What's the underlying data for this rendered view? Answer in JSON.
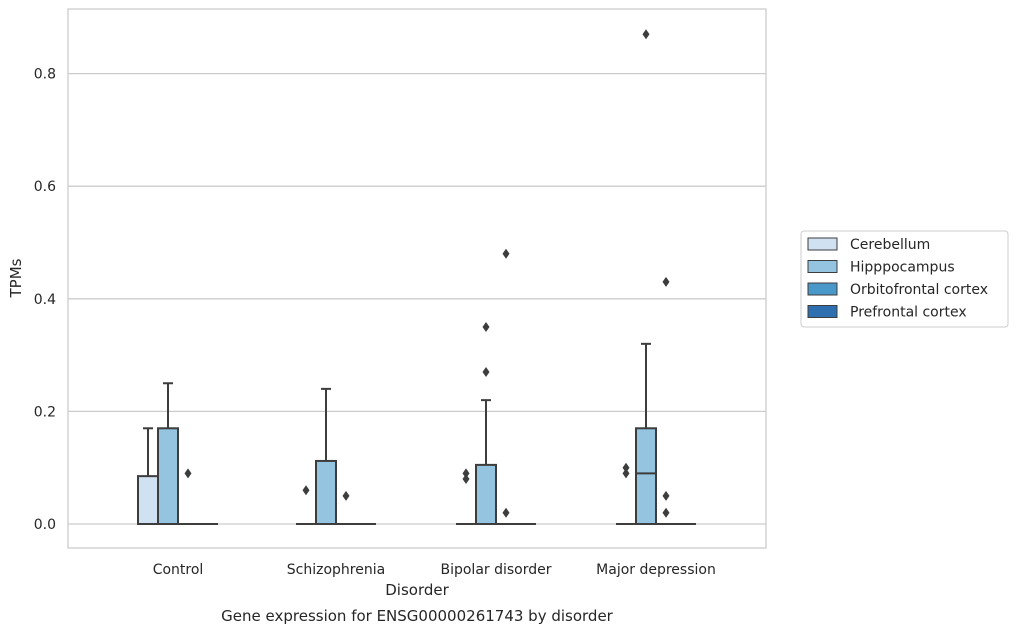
{
  "chart_data": {
    "type": "box",
    "title": "",
    "caption": "Gene expression for ENSG00000261743 by disorder",
    "xlabel": "Disorder",
    "ylabel": "TPMs",
    "ylim": [
      -0.043,
      0.915
    ],
    "yticks": [
      0.0,
      0.2,
      0.4,
      0.6,
      0.8
    ],
    "ytick_labels": [
      "0.0",
      "0.2",
      "0.4",
      "0.6",
      "0.8"
    ],
    "grid": "horizontal",
    "legend_position": "center-right",
    "categories": [
      "Control",
      "Schizophrenia",
      "Bipolar disorder",
      "Major depression"
    ],
    "series": [
      {
        "name": "Cerebellum",
        "color": "#d0e1f2",
        "boxes": [
          {
            "q1": 0.0,
            "median": 0.0,
            "q3": 0.085,
            "whisker_low": 0.0,
            "whisker_high": 0.17,
            "outliers": []
          },
          {
            "q1": 0.0,
            "median": 0.0,
            "q3": 0.0,
            "whisker_low": 0.0,
            "whisker_high": 0.0,
            "outliers": [
              0.06
            ]
          },
          {
            "q1": 0.0,
            "median": 0.0,
            "q3": 0.0,
            "whisker_low": 0.0,
            "whisker_high": 0.0,
            "outliers": [
              0.08,
              0.09
            ]
          },
          {
            "q1": 0.0,
            "median": 0.0,
            "q3": 0.0,
            "whisker_low": 0.0,
            "whisker_high": 0.0,
            "outliers": [
              0.09,
              0.1
            ]
          }
        ]
      },
      {
        "name": "Hipppocampus",
        "color": "#94c4df",
        "boxes": [
          {
            "q1": 0.0,
            "median": 0.0,
            "q3": 0.17,
            "whisker_low": 0.0,
            "whisker_high": 0.25,
            "outliers": []
          },
          {
            "q1": 0.0,
            "median": 0.0,
            "q3": 0.112,
            "whisker_low": 0.0,
            "whisker_high": 0.24,
            "outliers": []
          },
          {
            "q1": 0.0,
            "median": 0.0,
            "q3": 0.105,
            "whisker_low": 0.0,
            "whisker_high": 0.22,
            "outliers": [
              0.27,
              0.35
            ]
          },
          {
            "q1": 0.0,
            "median": 0.09,
            "q3": 0.17,
            "whisker_low": 0.0,
            "whisker_high": 0.32,
            "outliers": [
              0.87
            ]
          }
        ]
      },
      {
        "name": "Orbitofrontal cortex",
        "color": "#4a98c9",
        "boxes": [
          {
            "q1": 0.0,
            "median": 0.0,
            "q3": 0.0,
            "whisker_low": 0.0,
            "whisker_high": 0.0,
            "outliers": [
              0.09
            ]
          },
          {
            "q1": 0.0,
            "median": 0.0,
            "q3": 0.0,
            "whisker_low": 0.0,
            "whisker_high": 0.0,
            "outliers": [
              0.05
            ]
          },
          {
            "q1": 0.0,
            "median": 0.0,
            "q3": 0.0,
            "whisker_low": 0.0,
            "whisker_high": 0.0,
            "outliers": [
              0.48,
              0.02
            ]
          },
          {
            "q1": 0.0,
            "median": 0.0,
            "q3": 0.0,
            "whisker_low": 0.0,
            "whisker_high": 0.0,
            "outliers": [
              0.43,
              0.05,
              0.02
            ]
          }
        ]
      },
      {
        "name": "Prefrontal cortex",
        "color": "#2e6fb0",
        "boxes": [
          {
            "q1": 0.0,
            "median": 0.0,
            "q3": 0.0,
            "whisker_low": 0.0,
            "whisker_high": 0.0,
            "outliers": []
          },
          {
            "q1": 0.0,
            "median": 0.0,
            "q3": 0.0,
            "whisker_low": 0.0,
            "whisker_high": 0.0,
            "outliers": []
          },
          {
            "q1": 0.0,
            "median": 0.0,
            "q3": 0.0,
            "whisker_low": 0.0,
            "whisker_high": 0.0,
            "outliers": []
          },
          {
            "q1": 0.0,
            "median": 0.0,
            "q3": 0.0,
            "whisker_low": 0.0,
            "whisker_high": 0.0,
            "outliers": []
          }
        ]
      }
    ]
  }
}
